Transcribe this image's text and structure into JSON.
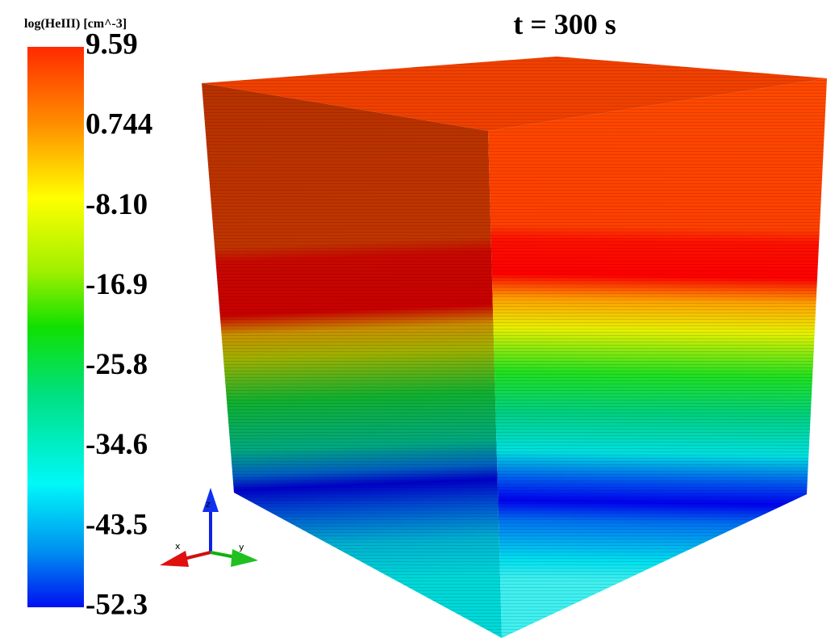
{
  "colorbar": {
    "title": "log(HeIII) [cm^-3]",
    "ticks": [
      "9.59",
      "0.744",
      "-8.10",
      "-16.9",
      "-25.8",
      "-34.6",
      "-43.5",
      "-52.3"
    ]
  },
  "time_label": "t = 300 s",
  "axes": {
    "x": "x",
    "y": "y",
    "z": "z"
  }
}
